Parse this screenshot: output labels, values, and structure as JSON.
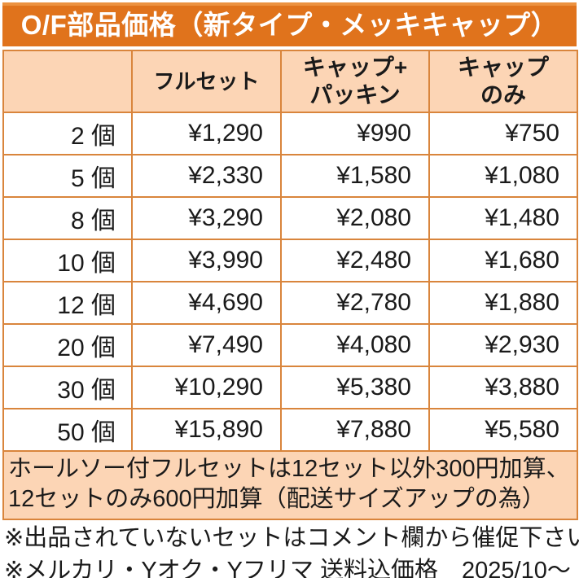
{
  "title": "O/F部品価格（新タイプ・メッキキャップ）",
  "colors": {
    "accent_orange": "#E0731C",
    "accent_orange_light_edge": "#EC9240",
    "header_peach": "#FCD5B5",
    "grid_border_orange": "#D9853C",
    "title_text": "#FFFFFF",
    "body_text": "#1A1A1A"
  },
  "table": {
    "columns": {
      "qty": "",
      "full_set": "フルセット",
      "cap_packing": "キャップ+\nパッキン",
      "cap_only": "キャップ\nのみ"
    },
    "rows": [
      {
        "qty": "2 個",
        "full": "¥1,290",
        "cap_packing": "¥990",
        "cap_only": "¥750"
      },
      {
        "qty": "5 個",
        "full": "¥2,330",
        "cap_packing": "¥1,580",
        "cap_only": "¥1,080"
      },
      {
        "qty": "8 個",
        "full": "¥3,290",
        "cap_packing": "¥2,080",
        "cap_only": "¥1,480"
      },
      {
        "qty": "10 個",
        "full": "¥3,990",
        "cap_packing": "¥2,480",
        "cap_only": "¥1,680"
      },
      {
        "qty": "12 個",
        "full": "¥4,690",
        "cap_packing": "¥2,780",
        "cap_only": "¥1,880"
      },
      {
        "qty": "20 個",
        "full": "¥7,490",
        "cap_packing": "¥4,080",
        "cap_only": "¥2,930"
      },
      {
        "qty": "30 個",
        "full": "¥10,290",
        "cap_packing": "¥5,380",
        "cap_only": "¥3,880"
      },
      {
        "qty": "50 個",
        "full": "¥15,890",
        "cap_packing": "¥7,880",
        "cap_only": "¥5,580"
      }
    ],
    "note": "ホールソー付フルセットは12セット以外300円加算、12セットのみ600円加算（配送サイズアップの為）"
  },
  "remarks": {
    "line1": "※出品されていないセットはコメント欄から催促下さい",
    "line2": "※メルカリ・Yオク・Yフリマ 送料込価格　2025/10～"
  }
}
